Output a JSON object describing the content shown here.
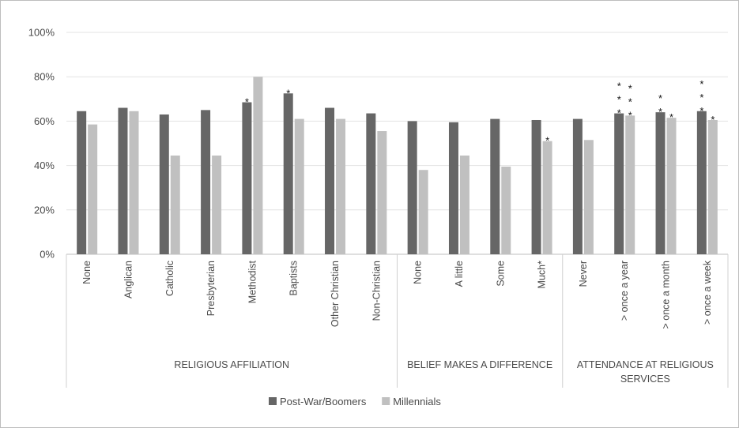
{
  "chart_data": {
    "type": "bar",
    "y_ticks": [
      "0%",
      "20%",
      "40%",
      "60%",
      "80%",
      "100%"
    ],
    "ylim": [
      0,
      100
    ],
    "grid": true,
    "legend_position": "bottom",
    "categories": [
      "None",
      "Anglican",
      "Catholic",
      "Presbyterian",
      "Methodist",
      "Baptists",
      "Other Christian",
      "Non-Christian",
      "None",
      "A little",
      "Some",
      "Much*",
      "Never",
      "> once a year",
      "> once a month",
      "> once a week"
    ],
    "groups": [
      {
        "label": "RELIGIOUS AFFILIATION",
        "label_lines": [
          "RELIGIOUS AFFILIATION"
        ],
        "start": 0,
        "end": 7
      },
      {
        "label": "BELIEF MAKES A DIFFERENCE",
        "label_lines": [
          "BELIEF MAKES A DIFFERENCE"
        ],
        "start": 8,
        "end": 11
      },
      {
        "label": "ATTENDANCE AT RELIGIOUS SERVICES",
        "label_lines": [
          "ATTENDANCE AT RELIGIOUS",
          "SERVICES"
        ],
        "start": 12,
        "end": 15
      }
    ],
    "series": [
      {
        "name": "Post-War/Boomers",
        "color": "#666666",
        "values": [
          64.5,
          66,
          63,
          65,
          68.5,
          72.5,
          66,
          63.5,
          60,
          59.5,
          61,
          60.5,
          61,
          63.5,
          64,
          64.5
        ],
        "stars": [
          "",
          "",
          "",
          "",
          "*",
          "*",
          "",
          "",
          "",
          "",
          "",
          "",
          "",
          "***",
          "**",
          "***"
        ]
      },
      {
        "name": "Millennials",
        "color": "#c0c0c0",
        "values": [
          58.5,
          64.5,
          44.5,
          44.5,
          80,
          61,
          61,
          55.5,
          38,
          44.5,
          39.5,
          51,
          51.5,
          62.5,
          61.5,
          60.5
        ],
        "stars": [
          "",
          "",
          "",
          "",
          "",
          "",
          "",
          "",
          "",
          "",
          "",
          "*",
          "",
          "***",
          "*",
          "*"
        ]
      }
    ]
  }
}
